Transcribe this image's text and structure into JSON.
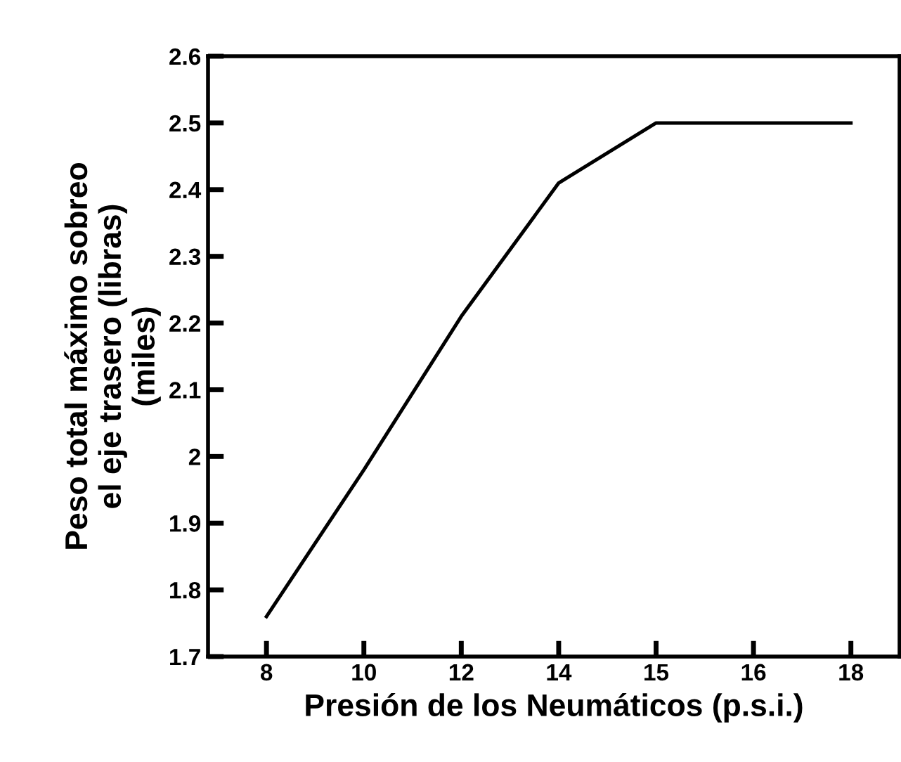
{
  "chart_data": {
    "type": "line",
    "xlabel": "Presión de los Neumáticos (p.s.i.)",
    "ylabel": "Peso total máximo sobreo\nel eje trasero (libras)\n(miles)",
    "categories": [
      "8",
      "10",
      "12",
      "14",
      "15",
      "16",
      "18"
    ],
    "series": [
      {
        "color": "#000000",
        "values": [
          1.76,
          1.98,
          2.21,
          2.41,
          2.5,
          2.5,
          2.5
        ]
      }
    ],
    "ylim": [
      1.7,
      2.6
    ],
    "yticks": [
      1.7,
      1.8,
      1.9,
      {
        "value": 2.0,
        "label": "2"
      },
      2.1,
      2.2,
      2.3,
      2.4,
      2.5,
      2.6
    ],
    "grid": false,
    "legend": false,
    "marker": "none",
    "line_style": "solid"
  }
}
